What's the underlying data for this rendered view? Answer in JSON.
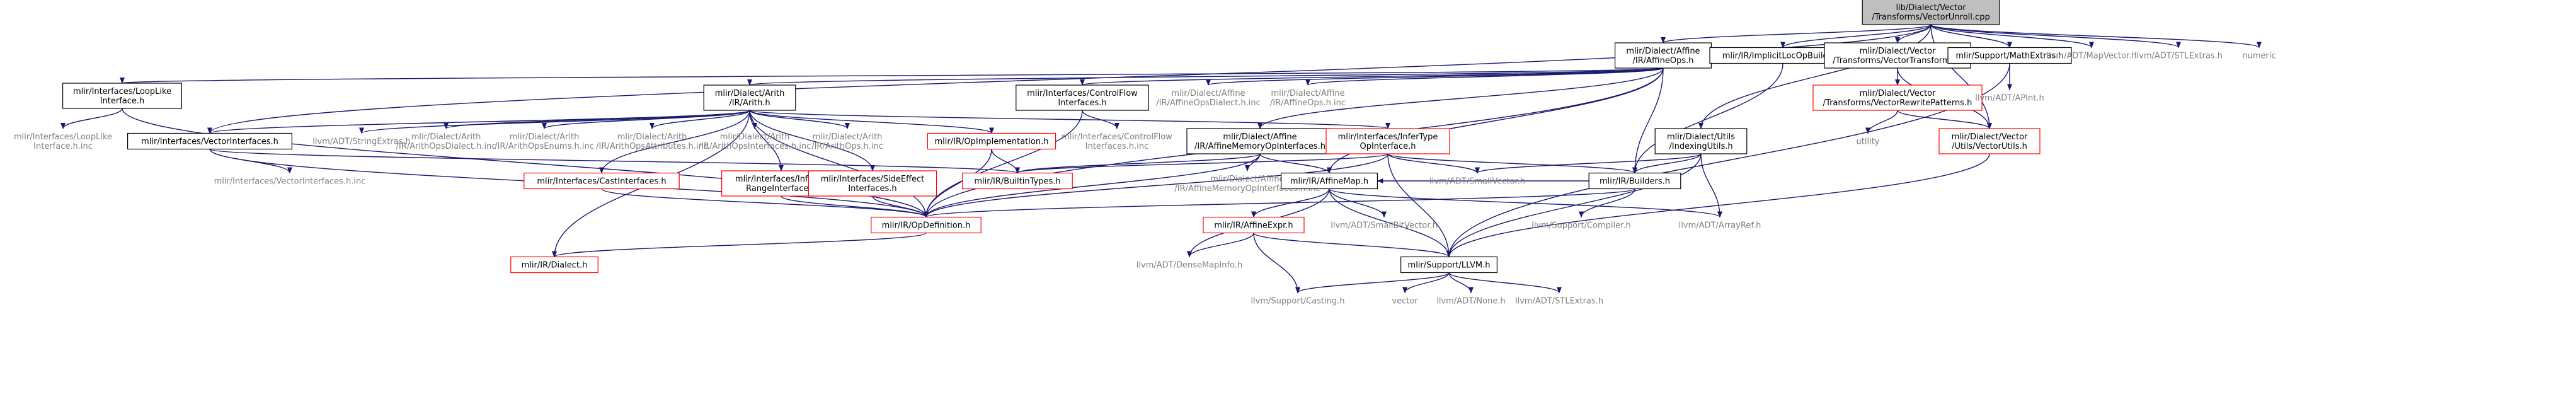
{
  "graph": {
    "colors": {
      "root_fill": "#bfbfbf",
      "boxed_fill": "#ffffff",
      "boxed_stroke": "#000000",
      "red_stroke": "#ff0000",
      "leaf_text": "#7f7f7f",
      "normal_text": "#000000",
      "edge_mid": "#191970"
    },
    "nodes": [
      {
        "id": "root",
        "lines": [
          "lib/Dialect/Vector",
          "/Transforms/VectorUnroll.cpp"
        ],
        "style": "root"
      },
      {
        "id": "affineops",
        "lines": [
          "mlir/Dialect/Affine",
          "/IR/AffineOps.h"
        ],
        "style": "boxed"
      },
      {
        "id": "implicitloc",
        "lines": [
          "mlir/IR/ImplicitLocOpBuilder.h"
        ],
        "style": "boxed"
      },
      {
        "id": "vectortransforms",
        "lines": [
          "mlir/Dialect/Vector",
          "/Transforms/VectorTransforms.h"
        ],
        "style": "boxed"
      },
      {
        "id": "mathextras",
        "lines": [
          "mlir/Support/MathExtras.h"
        ],
        "style": "boxed"
      },
      {
        "id": "mapvector",
        "lines": [
          "llvm/ADT/MapVector.h"
        ],
        "style": "leaf"
      },
      {
        "id": "stlextras_top",
        "lines": [
          "llvm/ADT/STLExtras.h"
        ],
        "style": "leaf"
      },
      {
        "id": "numeric",
        "lines": [
          "numeric"
        ],
        "style": "leaf"
      },
      {
        "id": "looplike",
        "lines": [
          "mlir/Interfaces/LoopLike",
          "Interface.h"
        ],
        "style": "boxed"
      },
      {
        "id": "arith",
        "lines": [
          "mlir/Dialect/Arith",
          "/IR/Arith.h"
        ],
        "style": "boxed"
      },
      {
        "id": "controlflow",
        "lines": [
          "mlir/Interfaces/ControlFlow",
          "Interfaces.h"
        ],
        "style": "boxed"
      },
      {
        "id": "affineopsdialect",
        "lines": [
          "mlir/Dialect/Affine",
          "/IR/AffineOpsDialect.h.inc"
        ],
        "style": "leaf"
      },
      {
        "id": "affineopsinc",
        "lines": [
          "mlir/Dialect/Affine",
          "/IR/AffineOps.h.inc"
        ],
        "style": "leaf"
      },
      {
        "id": "vectorrewrite",
        "lines": [
          "mlir/Dialect/Vector",
          "/Transforms/VectorRewritePatterns.h"
        ],
        "style": "red"
      },
      {
        "id": "apint",
        "lines": [
          "llvm/ADT/APInt.h"
        ],
        "style": "leaf"
      },
      {
        "id": "looplikeinc",
        "lines": [
          "mlir/Interfaces/LoopLike",
          "Interface.h.inc"
        ],
        "style": "leaf"
      },
      {
        "id": "vectorinterfaces",
        "lines": [
          "mlir/Interfaces/VectorInterfaces.h"
        ],
        "style": "boxed"
      },
      {
        "id": "stringextras",
        "lines": [
          "llvm/ADT/StringExtras.h"
        ],
        "style": "leaf"
      },
      {
        "id": "arithdialectinc",
        "lines": [
          "mlir/Dialect/Arith",
          "/IR/ArithOpsDialect.h.inc"
        ],
        "style": "leaf"
      },
      {
        "id": "arithenumsinc",
        "lines": [
          "mlir/Dialect/Arith",
          "/IR/ArithOpsEnums.h.inc"
        ],
        "style": "leaf"
      },
      {
        "id": "arithattrsinc",
        "lines": [
          "mlir/Dialect/Arith",
          "/IR/ArithOpsAttributes.h.inc"
        ],
        "style": "leaf"
      },
      {
        "id": "arithifaceinc",
        "lines": [
          "mlir/Dialect/Arith",
          "/IR/ArithOpsInterfaces.h.inc"
        ],
        "style": "leaf"
      },
      {
        "id": "arithopsinc",
        "lines": [
          "mlir/Dialect/Arith",
          "/IR/ArithOps.h.inc"
        ],
        "style": "leaf"
      },
      {
        "id": "opimpl",
        "lines": [
          "mlir/IR/OpImplementation.h"
        ],
        "style": "red"
      },
      {
        "id": "controlflowinc",
        "lines": [
          "mlir/Interfaces/ControlFlow",
          "Interfaces.h.inc"
        ],
        "style": "leaf"
      },
      {
        "id": "affinememory",
        "lines": [
          "mlir/Dialect/Affine",
          "/IR/AffineMemoryOpInterfaces.h"
        ],
        "style": "boxed"
      },
      {
        "id": "infertype",
        "lines": [
          "mlir/Interfaces/InferType",
          "OpInterface.h"
        ],
        "style": "red"
      },
      {
        "id": "utility",
        "lines": [
          "utility"
        ],
        "style": "leaf"
      },
      {
        "id": "indexingutils",
        "lines": [
          "mlir/Dialect/Utils",
          "/IndexingUtils.h"
        ],
        "style": "boxed"
      },
      {
        "id": "vectorutils",
        "lines": [
          "mlir/Dialect/Vector",
          "/Utils/VectorUtils.h"
        ],
        "style": "red"
      },
      {
        "id": "vectorifaceinc",
        "lines": [
          "mlir/Interfaces/VectorInterfaces.h.inc"
        ],
        "style": "leaf"
      },
      {
        "id": "castifaces",
        "lines": [
          "mlir/Interfaces/CastInterfaces.h"
        ],
        "style": "red"
      },
      {
        "id": "inferintrange",
        "lines": [
          "mlir/Interfaces/InferInt",
          "RangeInterface.h"
        ],
        "style": "red"
      },
      {
        "id": "sideeffect",
        "lines": [
          "mlir/Interfaces/SideEffect",
          "Interfaces.h"
        ],
        "style": "red"
      },
      {
        "id": "builtintypes",
        "lines": [
          "mlir/IR/BuiltinTypes.h"
        ],
        "style": "red"
      },
      {
        "id": "affinememinc",
        "lines": [
          "mlir/Dialect/Affine",
          "/IR/AffineMemoryOpInterfaces.h.inc"
        ],
        "style": "leaf"
      },
      {
        "id": "affinemap",
        "lines": [
          "mlir/IR/AffineMap.h"
        ],
        "style": "boxed"
      },
      {
        "id": "smallvector",
        "lines": [
          "llvm/ADT/SmallVector.h"
        ],
        "style": "leaf"
      },
      {
        "id": "builders",
        "lines": [
          "mlir/IR/Builders.h"
        ],
        "style": "boxed"
      },
      {
        "id": "opdefinition",
        "lines": [
          "mlir/IR/OpDefinition.h"
        ],
        "style": "red"
      },
      {
        "id": "affineexpr",
        "lines": [
          "mlir/IR/AffineExpr.h"
        ],
        "style": "red"
      },
      {
        "id": "smallbitvector",
        "lines": [
          "llvm/ADT/SmallBitVector.h"
        ],
        "style": "leaf"
      },
      {
        "id": "compiler",
        "lines": [
          "llvm/Support/Compiler.h"
        ],
        "style": "leaf"
      },
      {
        "id": "arrayref",
        "lines": [
          "llvm/ADT/ArrayRef.h"
        ],
        "style": "leaf"
      },
      {
        "id": "dialect",
        "lines": [
          "mlir/IR/Dialect.h"
        ],
        "style": "red"
      },
      {
        "id": "densemapinfo",
        "lines": [
          "llvm/ADT/DenseMapInfo.h"
        ],
        "style": "leaf"
      },
      {
        "id": "llvmh",
        "lines": [
          "mlir/Support/LLVM.h"
        ],
        "style": "boxed"
      },
      {
        "id": "casting",
        "lines": [
          "llvm/Support/Casting.h"
        ],
        "style": "leaf"
      },
      {
        "id": "vector",
        "lines": [
          "vector"
        ],
        "style": "leaf"
      },
      {
        "id": "none",
        "lines": [
          "llvm/ADT/None.h"
        ],
        "style": "leaf"
      },
      {
        "id": "stlextras_bot",
        "lines": [
          "llvm/ADT/STLExtras.h"
        ],
        "style": "leaf"
      }
    ],
    "edges": [
      [
        "root",
        "affineops"
      ],
      [
        "root",
        "implicitloc"
      ],
      [
        "root",
        "vectortransforms"
      ],
      [
        "root",
        "mathextras"
      ],
      [
        "root",
        "mapvector"
      ],
      [
        "root",
        "stlextras_top"
      ],
      [
        "root",
        "numeric"
      ],
      [
        "root",
        "indexingutils"
      ],
      [
        "root",
        "vectorutils"
      ],
      [
        "root",
        "vectorinterfaces"
      ],
      [
        "affineops",
        "looplike"
      ],
      [
        "affineops",
        "arith"
      ],
      [
        "affineops",
        "controlflow"
      ],
      [
        "affineops",
        "affineopsdialect"
      ],
      [
        "affineops",
        "affineopsinc"
      ],
      [
        "affineops",
        "affinememory"
      ],
      [
        "affineops",
        "builders"
      ],
      [
        "affineops",
        "affinemap"
      ],
      [
        "affineops",
        "opdefinition"
      ],
      [
        "implicitloc",
        "builders"
      ],
      [
        "vectortransforms",
        "vectorrewrite"
      ],
      [
        "vectortransforms",
        "vectorutils"
      ],
      [
        "vectorrewrite",
        "utility"
      ],
      [
        "vectorrewrite",
        "vectorutils"
      ],
      [
        "mathextras",
        "apint"
      ],
      [
        "mathextras",
        "llvmh"
      ],
      [
        "looplike",
        "looplikeinc"
      ],
      [
        "looplike",
        "opdefinition"
      ],
      [
        "arith",
        "vectorinterfaces"
      ],
      [
        "arith",
        "stringextras"
      ],
      [
        "arith",
        "arithdialectinc"
      ],
      [
        "arith",
        "arithenumsinc"
      ],
      [
        "arith",
        "arithattrsinc"
      ],
      [
        "arith",
        "arithifaceinc"
      ],
      [
        "arith",
        "arithopsinc"
      ],
      [
        "arith",
        "opimpl"
      ],
      [
        "arith",
        "infertype"
      ],
      [
        "arith",
        "castifaces"
      ],
      [
        "arith",
        "inferintrange"
      ],
      [
        "arith",
        "sideeffect"
      ],
      [
        "arith",
        "opdefinition"
      ],
      [
        "arith",
        "dialect"
      ],
      [
        "controlflow",
        "controlflowinc"
      ],
      [
        "controlflow",
        "opdefinition"
      ],
      [
        "affinememory",
        "affinememinc"
      ],
      [
        "affinememory",
        "affinemap"
      ],
      [
        "affinememory",
        "builtintypes"
      ],
      [
        "affinememory",
        "opdefinition"
      ],
      [
        "infertype",
        "builtintypes"
      ],
      [
        "infertype",
        "smallvector"
      ],
      [
        "infertype",
        "builders"
      ],
      [
        "infertype",
        "opdefinition"
      ],
      [
        "infertype",
        "llvmh"
      ],
      [
        "opimpl",
        "builtintypes"
      ],
      [
        "opimpl",
        "opdefinition"
      ],
      [
        "indexingutils",
        "smallvector"
      ],
      [
        "indexingutils",
        "builders"
      ],
      [
        "indexingutils",
        "arrayref"
      ],
      [
        "indexingutils",
        "llvmh"
      ],
      [
        "vectorutils",
        "llvmh"
      ],
      [
        "vectorinterfaces",
        "vectorifaceinc"
      ],
      [
        "vectorinterfaces",
        "builtintypes"
      ],
      [
        "vectorinterfaces",
        "opdefinition"
      ],
      [
        "castifaces",
        "opdefinition"
      ],
      [
        "inferintrange",
        "opdefinition"
      ],
      [
        "sideeffect",
        "opdefinition"
      ],
      [
        "affinemap",
        "affineexpr"
      ],
      [
        "affinemap",
        "smallbitvector"
      ],
      [
        "affinemap",
        "arrayref"
      ],
      [
        "affinemap",
        "densemapinfo"
      ],
      [
        "affinemap",
        "llvmh"
      ],
      [
        "builders",
        "opdefinition"
      ],
      [
        "builders",
        "affinemap"
      ],
      [
        "builders",
        "compiler"
      ],
      [
        "opdefinition",
        "dialect"
      ],
      [
        "affineexpr",
        "densemapinfo"
      ],
      [
        "affineexpr",
        "casting"
      ],
      [
        "affineexpr",
        "llvmh"
      ],
      [
        "llvmh",
        "casting"
      ],
      [
        "llvmh",
        "vector"
      ],
      [
        "llvmh",
        "none"
      ],
      [
        "llvmh",
        "stlextras_bot"
      ]
    ]
  }
}
